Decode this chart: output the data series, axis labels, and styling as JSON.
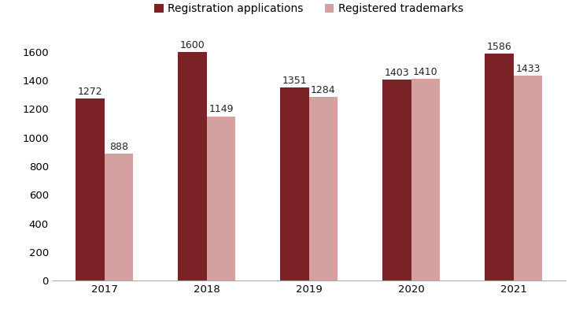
{
  "years": [
    "2017",
    "2018",
    "2019",
    "2020",
    "2021"
  ],
  "registration_applications": [
    1272,
    1600,
    1351,
    1403,
    1586
  ],
  "registered_trademarks": [
    888,
    1149,
    1284,
    1410,
    1433
  ],
  "bar_color_applications": "#7B2226",
  "bar_color_trademarks": "#D4A0A0",
  "legend_label_applications": "Registration applications",
  "legend_label_trademarks": "Registered trademarks",
  "ylim": [
    0,
    1700
  ],
  "yticks": [
    0,
    200,
    400,
    600,
    800,
    1000,
    1200,
    1400,
    1600
  ],
  "bar_width": 0.28,
  "label_fontsize": 9,
  "tick_fontsize": 9.5,
  "legend_fontsize": 10,
  "background_color": "#ffffff"
}
